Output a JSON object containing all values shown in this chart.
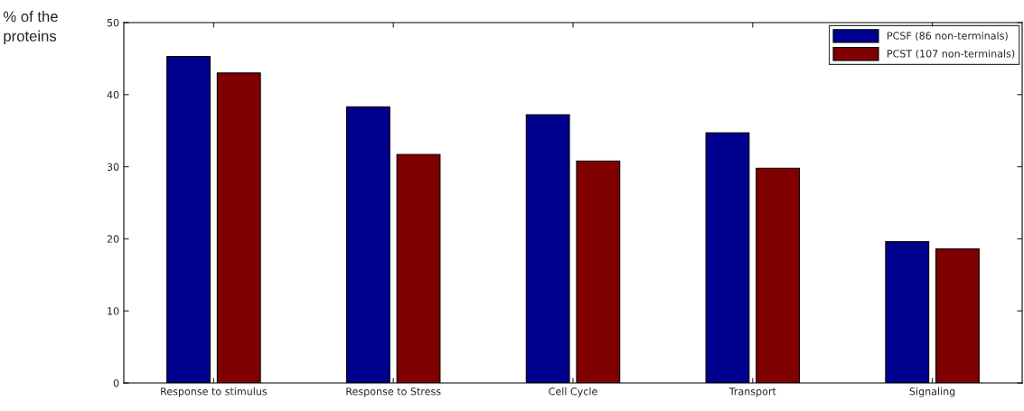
{
  "chart_data": {
    "type": "bar",
    "ylabel": "% of the\nproteins",
    "categories": [
      "Response to stimulus",
      "Response to Stress",
      "Cell Cycle",
      "Transport",
      "Signaling"
    ],
    "series": [
      {
        "name": "PCSF (86 non-terminals)",
        "color": "#00008f",
        "values": [
          45.3,
          38.3,
          37.2,
          34.7,
          19.6
        ]
      },
      {
        "name": "PCST (107 non-terminals)",
        "color": "#800000",
        "values": [
          43.0,
          31.7,
          30.8,
          29.8,
          18.6
        ]
      }
    ],
    "ylim": [
      0,
      50
    ],
    "yticks": [
      0,
      10,
      20,
      30,
      40,
      50
    ],
    "grid": false,
    "legend": "top right"
  }
}
